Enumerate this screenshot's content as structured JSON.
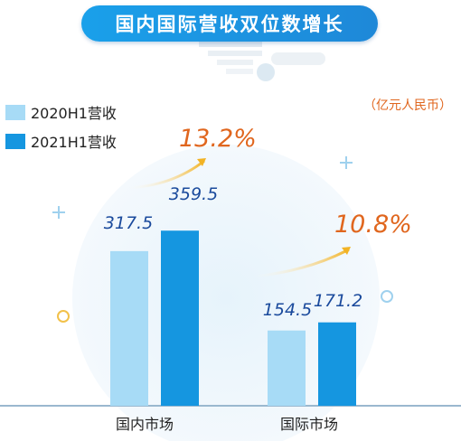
{
  "title": "国内国际营收双位数增长",
  "unit": "（亿元人民币）",
  "colors": {
    "title_bg": "#1a9ae6",
    "series_2020": "#a7dbf6",
    "series_2021": "#1596e0",
    "growth_text": "#e0661e",
    "value_text": "#1a4a9c"
  },
  "chart_data": {
    "type": "bar",
    "categories": [
      "国内市场",
      "国际市场"
    ],
    "series": [
      {
        "name": "2020H1营收",
        "values": [
          317.5,
          154.5
        ]
      },
      {
        "name": "2021H1营收",
        "values": [
          359.5,
          171.2
        ]
      }
    ],
    "value_labels": [
      [
        "317.5",
        "154.5"
      ],
      [
        "359.5",
        "171.2"
      ]
    ],
    "growth": [
      "13.2%",
      "10.8%"
    ],
    "ylim": [
      0,
      400
    ],
    "legend_position": "top-left",
    "grid": false
  }
}
